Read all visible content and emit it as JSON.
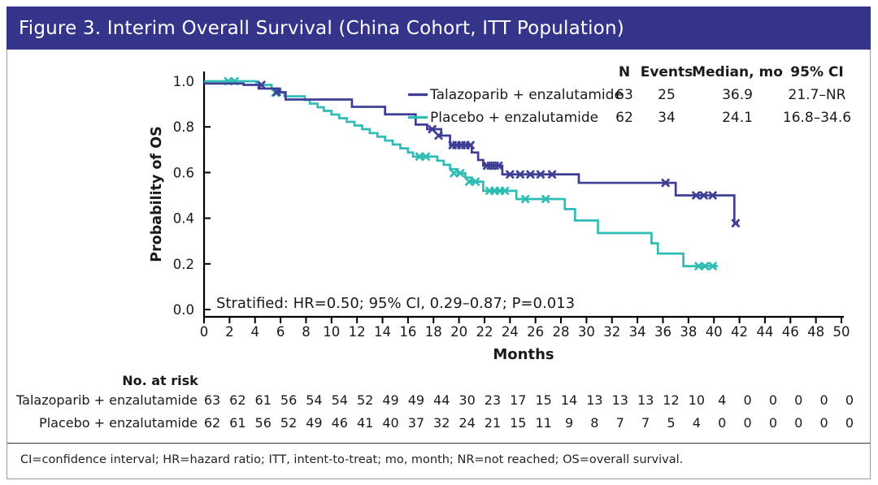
{
  "title_bar": {
    "text": "Figure 3. Interim Overall Survival (China Cohort, ITT Population)",
    "bg_color": "#34348A",
    "text_color": "#FFFFFF"
  },
  "footer": {
    "text": "CI=confidence interval; HR=hazard ratio; ITT, intent-to-treat; mo, month; NR=not reached; OS=overall survival."
  },
  "chart_data": {
    "type": "line",
    "subtype": "kaplan_meier_step",
    "title": "",
    "xlabel": "Months",
    "ylabel": "Probability of OS",
    "xlim": [
      0,
      50
    ],
    "ylim": [
      0.0,
      1.0
    ],
    "x_ticks": [
      0,
      2,
      4,
      6,
      8,
      10,
      12,
      14,
      16,
      18,
      20,
      22,
      24,
      26,
      28,
      30,
      32,
      34,
      36,
      38,
      40,
      42,
      44,
      46,
      48,
      50
    ],
    "y_ticks": [
      "0.0",
      "0.2",
      "0.4",
      "0.6",
      "0.8",
      "1.0"
    ],
    "grid": false,
    "legend_position": "top-right",
    "annotation": "Stratified: HR=0.50; 95% CI, 0.29–0.87; P=0.013",
    "legend_table": {
      "headers": [
        "N",
        "Events",
        "Median, mo",
        "95% CI"
      ],
      "rows": [
        {
          "label": "Talazoparib + enzalutamide",
          "n": "63",
          "events": "25",
          "median_mo": "36.9",
          "ci_95": "21.7–NR"
        },
        {
          "label": "Placebo + enzalutamide",
          "n": "62",
          "events": "34",
          "median_mo": "24.1",
          "ci_95": "16.8–34.6"
        }
      ]
    },
    "series": [
      {
        "name": "Placebo + enzalutamide",
        "color": "#2FBCB4",
        "steps": [
          [
            0,
            1.0
          ],
          [
            4.1,
            0.984
          ],
          [
            5.3,
            0.967
          ],
          [
            6.0,
            0.95
          ],
          [
            6.3,
            0.934
          ],
          [
            7.9,
            0.918
          ],
          [
            8.3,
            0.902
          ],
          [
            8.9,
            0.886
          ],
          [
            9.4,
            0.87
          ],
          [
            10.0,
            0.854
          ],
          [
            10.6,
            0.838
          ],
          [
            11.2,
            0.822
          ],
          [
            11.8,
            0.806
          ],
          [
            12.4,
            0.79
          ],
          [
            13.0,
            0.773
          ],
          [
            13.6,
            0.757
          ],
          [
            14.2,
            0.74
          ],
          [
            14.8,
            0.723
          ],
          [
            15.4,
            0.706
          ],
          [
            16.0,
            0.688
          ],
          [
            16.4,
            0.67
          ],
          [
            18.3,
            0.652
          ],
          [
            18.8,
            0.634
          ],
          [
            19.3,
            0.615
          ],
          [
            19.9,
            0.597
          ],
          [
            20.5,
            0.578
          ],
          [
            21.0,
            0.56
          ],
          [
            21.9,
            0.52
          ],
          [
            24.5,
            0.484
          ],
          [
            28.3,
            0.44
          ],
          [
            29.1,
            0.39
          ],
          [
            30.9,
            0.335
          ],
          [
            35.1,
            0.29
          ],
          [
            35.6,
            0.245
          ],
          [
            37.6,
            0.19
          ]
        ],
        "end_month": 40.3,
        "censor_marks": [
          [
            1.9,
            1.0
          ],
          [
            2.4,
            1.0
          ],
          [
            5.6,
            0.95
          ],
          [
            16.9,
            0.67
          ],
          [
            17.4,
            0.67
          ],
          [
            19.6,
            0.597
          ],
          [
            20.1,
            0.597
          ],
          [
            20.8,
            0.56
          ],
          [
            21.3,
            0.56
          ],
          [
            22.4,
            0.52
          ],
          [
            22.8,
            0.52
          ],
          [
            23.2,
            0.52
          ],
          [
            23.6,
            0.52
          ],
          [
            25.2,
            0.484
          ],
          [
            26.8,
            0.484
          ],
          [
            38.8,
            0.19
          ],
          [
            39.3,
            0.19
          ],
          [
            39.9,
            0.19
          ]
        ]
      },
      {
        "name": "Talazoparib + enzalutamide",
        "color": "#3E3E96",
        "steps": [
          [
            0,
            0.99
          ],
          [
            3.1,
            0.984
          ],
          [
            4.3,
            0.968
          ],
          [
            5.9,
            0.952
          ],
          [
            6.4,
            0.92
          ],
          [
            11.6,
            0.888
          ],
          [
            14.2,
            0.855
          ],
          [
            16.6,
            0.81
          ],
          [
            17.5,
            0.79
          ],
          [
            18.6,
            0.762
          ],
          [
            19.3,
            0.72
          ],
          [
            21.0,
            0.688
          ],
          [
            21.5,
            0.655
          ],
          [
            21.9,
            0.63
          ],
          [
            23.4,
            0.592
          ],
          [
            29.4,
            0.555
          ],
          [
            37.0,
            0.5
          ],
          [
            41.6,
            0.378
          ]
        ],
        "end_month": 41.9,
        "censor_marks": [
          [
            4.5,
            0.984
          ],
          [
            5.7,
            0.952
          ],
          [
            17.9,
            0.79
          ],
          [
            18.4,
            0.762
          ],
          [
            19.5,
            0.72
          ],
          [
            19.8,
            0.72
          ],
          [
            20.2,
            0.72
          ],
          [
            20.5,
            0.72
          ],
          [
            20.9,
            0.72
          ],
          [
            22.2,
            0.63
          ],
          [
            22.5,
            0.63
          ],
          [
            22.8,
            0.63
          ],
          [
            23.1,
            0.63
          ],
          [
            24.0,
            0.592
          ],
          [
            24.8,
            0.592
          ],
          [
            25.6,
            0.592
          ],
          [
            26.4,
            0.592
          ],
          [
            27.3,
            0.592
          ],
          [
            36.2,
            0.555
          ],
          [
            38.6,
            0.5
          ],
          [
            39.2,
            0.5
          ],
          [
            39.9,
            0.5
          ],
          [
            41.7,
            0.378
          ]
        ]
      }
    ],
    "risk_table": {
      "title": "No. at risk",
      "months": [
        0,
        2,
        4,
        6,
        8,
        10,
        12,
        14,
        16,
        18,
        20,
        22,
        24,
        26,
        28,
        30,
        32,
        34,
        36,
        38,
        40,
        42,
        44,
        46,
        48,
        50
      ],
      "rows": [
        {
          "label": "Talazoparib + enzalutamide",
          "values": [
            63,
            62,
            61,
            56,
            54,
            54,
            52,
            49,
            49,
            44,
            30,
            23,
            17,
            15,
            14,
            13,
            13,
            13,
            12,
            10,
            4,
            0,
            0,
            0,
            0,
            0
          ]
        },
        {
          "label": "Placebo + enzalutamide",
          "values": [
            62,
            61,
            56,
            52,
            49,
            46,
            41,
            40,
            37,
            32,
            24,
            21,
            15,
            11,
            9,
            8,
            7,
            7,
            5,
            4,
            0,
            0,
            0,
            0,
            0,
            0
          ]
        }
      ]
    }
  }
}
